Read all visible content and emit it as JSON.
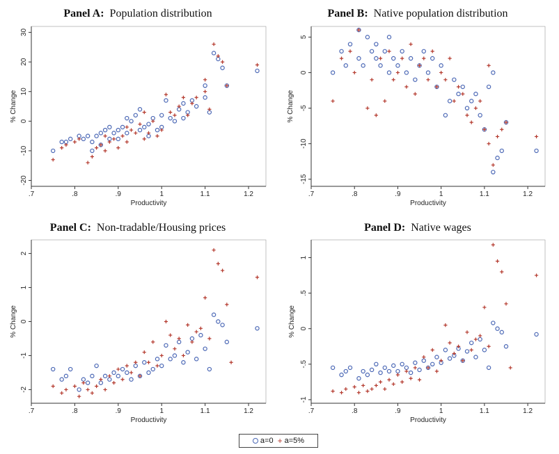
{
  "legend": {
    "series_a": "a=0",
    "series_b": "a=5%",
    "marker_a": "circle",
    "marker_b": "plus"
  },
  "colors": {
    "series_a": "#4a67b5",
    "series_b": "#b3372b",
    "axis": "#333333",
    "frame": "#999999"
  },
  "chart_data": [
    {
      "type": "scatter",
      "title_bold": "Panel A:",
      "title_rest": "Population distribution",
      "xlabel": "Productivity",
      "ylabel": "% Change",
      "xlim": [
        0.7,
        1.24
      ],
      "ylim": [
        -22,
        32
      ],
      "xticks": [
        0.7,
        0.8,
        0.9,
        1.0,
        1.1,
        1.2
      ],
      "xtick_labels": [
        ".7",
        ".8",
        ".9",
        "1",
        "1.1",
        "1.2"
      ],
      "yticks": [
        -20,
        -10,
        0,
        10,
        20,
        30
      ],
      "ytick_labels": [
        "-20",
        "-10",
        "0",
        "10",
        "20",
        "30"
      ],
      "series": [
        {
          "name": "a=0",
          "x": [
            0.75,
            0.77,
            0.78,
            0.79,
            0.81,
            0.82,
            0.83,
            0.84,
            0.84,
            0.85,
            0.86,
            0.86,
            0.87,
            0.88,
            0.88,
            0.89,
            0.9,
            0.9,
            0.91,
            0.92,
            0.92,
            0.93,
            0.94,
            0.95,
            0.95,
            0.96,
            0.97,
            0.97,
            0.98,
            0.99,
            1.0,
            1.0,
            1.01,
            1.02,
            1.03,
            1.04,
            1.05,
            1.05,
            1.06,
            1.07,
            1.08,
            1.1,
            1.1,
            1.11,
            1.12,
            1.13,
            1.14,
            1.15,
            1.22
          ],
          "y": [
            -10,
            -7,
            -7,
            -6,
            -5,
            -6,
            -5,
            -7,
            -10,
            -5,
            -4,
            -8,
            -3,
            -2,
            -6,
            -4,
            -3,
            -6,
            -2,
            -4,
            1,
            0,
            2,
            -3,
            4,
            -2,
            -1,
            -5,
            1,
            -3,
            -2,
            2,
            7,
            1,
            0,
            4,
            6,
            1,
            3,
            7,
            5,
            8,
            12,
            3,
            23,
            21,
            18,
            12,
            17
          ]
        },
        {
          "name": "a=5%",
          "x": [
            0.75,
            0.77,
            0.78,
            0.8,
            0.81,
            0.83,
            0.84,
            0.85,
            0.86,
            0.87,
            0.87,
            0.88,
            0.89,
            0.9,
            0.91,
            0.92,
            0.92,
            0.93,
            0.94,
            0.95,
            0.96,
            0.96,
            0.97,
            0.98,
            0.99,
            1.0,
            1.01,
            1.02,
            1.03,
            1.04,
            1.05,
            1.06,
            1.07,
            1.08,
            1.1,
            1.1,
            1.11,
            1.12,
            1.13,
            1.14,
            1.15,
            1.22
          ],
          "y": [
            -13,
            -9,
            -8,
            -7,
            -6,
            -14,
            -12,
            -9,
            -8,
            -5,
            -10,
            -7,
            -6,
            -9,
            -5,
            -7,
            -2,
            -3,
            -4,
            -1,
            -6,
            3,
            -4,
            0,
            -5,
            -3,
            9,
            3,
            2,
            5,
            8,
            2,
            6,
            8,
            10,
            14,
            4,
            26,
            22,
            20,
            12,
            19
          ]
        }
      ]
    },
    {
      "type": "scatter",
      "title_bold": "Panel B:",
      "title_rest": "Native population distribution",
      "xlabel": "Productivity",
      "ylabel": "% Change",
      "xlim": [
        0.7,
        1.24
      ],
      "ylim": [
        -16,
        6.5
      ],
      "xticks": [
        0.7,
        0.8,
        0.9,
        1.0,
        1.1,
        1.2
      ],
      "xtick_labels": [
        ".7",
        ".8",
        ".9",
        "1",
        "1.1",
        "1.2"
      ],
      "yticks": [
        -15,
        -10,
        -5,
        0,
        5
      ],
      "ytick_labels": [
        "-15",
        "-10",
        "-5",
        "0",
        "5"
      ],
      "series": [
        {
          "name": "a=0",
          "x": [
            0.75,
            0.77,
            0.78,
            0.79,
            0.81,
            0.81,
            0.82,
            0.83,
            0.84,
            0.85,
            0.85,
            0.86,
            0.87,
            0.88,
            0.88,
            0.89,
            0.9,
            0.91,
            0.92,
            0.93,
            0.94,
            0.95,
            0.96,
            0.97,
            0.98,
            0.99,
            1.0,
            1.01,
            1.02,
            1.03,
            1.04,
            1.05,
            1.06,
            1.07,
            1.08,
            1.09,
            1.1,
            1.11,
            1.12,
            1.12,
            1.13,
            1.14,
            1.15,
            1.22
          ],
          "y": [
            0,
            3,
            1,
            4,
            6,
            2,
            1,
            5,
            3,
            2,
            4,
            1,
            3,
            5,
            0,
            2,
            1,
            3,
            0,
            2,
            -1,
            1,
            3,
            0,
            2,
            -2,
            1,
            -6,
            -4,
            -1,
            -3,
            -2,
            -5,
            -4,
            -3,
            -6,
            -8,
            -2,
            -14,
            0,
            -12,
            -11,
            -7,
            -11
          ]
        },
        {
          "name": "a=5%",
          "x": [
            0.75,
            0.77,
            0.79,
            0.8,
            0.81,
            0.83,
            0.84,
            0.85,
            0.86,
            0.87,
            0.88,
            0.89,
            0.9,
            0.91,
            0.92,
            0.93,
            0.94,
            0.95,
            0.96,
            0.97,
            0.98,
            0.99,
            1.0,
            1.01,
            1.02,
            1.03,
            1.04,
            1.05,
            1.06,
            1.07,
            1.08,
            1.09,
            1.1,
            1.11,
            1.11,
            1.12,
            1.13,
            1.14,
            1.15,
            1.22
          ],
          "y": [
            -4,
            2,
            3,
            0,
            6,
            -5,
            -1,
            -6,
            2,
            -4,
            3,
            -1,
            0,
            2,
            -2,
            4,
            -3,
            1,
            2,
            -1,
            3,
            -2,
            0,
            -1,
            2,
            -4,
            -2,
            -3,
            -6,
            -7,
            -5,
            -4,
            -8,
            -10,
            1,
            -13,
            -9,
            -8,
            -7,
            -9
          ]
        }
      ]
    },
    {
      "type": "scatter",
      "title_bold": "Panel C:",
      "title_rest": "Non-tradable/Housing prices",
      "xlabel": "Productivity",
      "ylabel": "% Change",
      "xlim": [
        0.7,
        1.24
      ],
      "ylim": [
        -2.4,
        2.4
      ],
      "xticks": [
        0.7,
        0.8,
        0.9,
        1.0,
        1.1,
        1.2
      ],
      "xtick_labels": [
        ".7",
        ".8",
        ".9",
        "1",
        "1.1",
        "1.2"
      ],
      "yticks": [
        -2,
        -1,
        0,
        1,
        2
      ],
      "ytick_labels": [
        "-2",
        "-1",
        "0",
        "1",
        "2"
      ],
      "series": [
        {
          "name": "a=0",
          "x": [
            0.75,
            0.77,
            0.78,
            0.79,
            0.81,
            0.82,
            0.83,
            0.84,
            0.85,
            0.86,
            0.87,
            0.88,
            0.89,
            0.9,
            0.91,
            0.92,
            0.93,
            0.94,
            0.95,
            0.96,
            0.97,
            0.98,
            0.99,
            1.0,
            1.01,
            1.02,
            1.03,
            1.04,
            1.05,
            1.06,
            1.07,
            1.08,
            1.09,
            1.1,
            1.11,
            1.12,
            1.13,
            1.14,
            1.15,
            1.22
          ],
          "y": [
            -1.4,
            -1.7,
            -1.6,
            -1.4,
            -2.0,
            -1.7,
            -1.8,
            -1.6,
            -1.3,
            -1.8,
            -1.6,
            -1.7,
            -1.5,
            -1.6,
            -1.4,
            -1.5,
            -1.7,
            -1.3,
            -1.6,
            -1.2,
            -1.5,
            -1.4,
            -1.1,
            -1.3,
            -0.7,
            -1.1,
            -1.0,
            -0.6,
            -1.2,
            -0.9,
            -0.5,
            -1.1,
            -0.4,
            -0.8,
            -1.4,
            0.2,
            0.0,
            -0.1,
            -0.6,
            -0.2
          ]
        },
        {
          "name": "a=5%",
          "x": [
            0.75,
            0.77,
            0.78,
            0.8,
            0.81,
            0.82,
            0.83,
            0.84,
            0.85,
            0.86,
            0.87,
            0.88,
            0.89,
            0.9,
            0.91,
            0.92,
            0.93,
            0.94,
            0.95,
            0.96,
            0.97,
            0.98,
            0.99,
            1.0,
            1.01,
            1.02,
            1.03,
            1.04,
            1.05,
            1.06,
            1.07,
            1.08,
            1.09,
            1.1,
            1.11,
            1.12,
            1.13,
            1.14,
            1.15,
            1.16,
            1.22
          ],
          "y": [
            -1.9,
            -2.1,
            -2.0,
            -1.9,
            -2.2,
            -1.8,
            -2.0,
            -2.1,
            -1.9,
            -1.7,
            -2.0,
            -1.6,
            -1.8,
            -1.4,
            -1.7,
            -1.3,
            -1.5,
            -1.2,
            -1.6,
            -0.9,
            -1.2,
            -0.6,
            -1.3,
            -1.0,
            0.0,
            -0.4,
            -0.8,
            -0.5,
            -1.0,
            -0.1,
            -0.6,
            -0.3,
            -0.2,
            0.7,
            -0.5,
            2.1,
            1.7,
            1.5,
            0.5,
            -1.2,
            1.3
          ]
        }
      ]
    },
    {
      "type": "scatter",
      "title_bold": "Panel D:",
      "title_rest": "Native wages",
      "xlabel": "Productivity",
      "ylabel": "% Change",
      "xlim": [
        0.7,
        1.24
      ],
      "ylim": [
        -1.05,
        1.25
      ],
      "xticks": [
        0.7,
        0.8,
        0.9,
        1.0,
        1.1,
        1.2
      ],
      "xtick_labels": [
        ".7",
        ".8",
        ".9",
        "1",
        "1.1",
        "1.2"
      ],
      "yticks": [
        -1,
        -0.5,
        0,
        0.5,
        1
      ],
      "ytick_labels": [
        "-1",
        "-.5",
        "0",
        ".5",
        "1"
      ],
      "series": [
        {
          "name": "a=0",
          "x": [
            0.75,
            0.77,
            0.78,
            0.79,
            0.81,
            0.82,
            0.83,
            0.84,
            0.85,
            0.86,
            0.87,
            0.88,
            0.89,
            0.9,
            0.91,
            0.92,
            0.93,
            0.94,
            0.95,
            0.96,
            0.97,
            0.98,
            0.99,
            1.0,
            1.01,
            1.02,
            1.03,
            1.04,
            1.05,
            1.06,
            1.07,
            1.08,
            1.09,
            1.1,
            1.11,
            1.12,
            1.13,
            1.14,
            1.15,
            1.22
          ],
          "y": [
            -0.55,
            -0.65,
            -0.6,
            -0.55,
            -0.7,
            -0.6,
            -0.65,
            -0.58,
            -0.5,
            -0.62,
            -0.55,
            -0.6,
            -0.52,
            -0.6,
            -0.5,
            -0.55,
            -0.62,
            -0.48,
            -0.58,
            -0.45,
            -0.55,
            -0.5,
            -0.4,
            -0.48,
            -0.3,
            -0.42,
            -0.38,
            -0.28,
            -0.45,
            -0.32,
            -0.2,
            -0.4,
            -0.15,
            -0.3,
            -0.55,
            0.08,
            0.0,
            -0.05,
            -0.25,
            -0.08
          ]
        },
        {
          "name": "a=5%",
          "x": [
            0.75,
            0.77,
            0.78,
            0.8,
            0.81,
            0.82,
            0.83,
            0.84,
            0.85,
            0.86,
            0.87,
            0.88,
            0.89,
            0.9,
            0.91,
            0.92,
            0.93,
            0.94,
            0.95,
            0.96,
            0.97,
            0.98,
            0.99,
            1.0,
            1.01,
            1.02,
            1.03,
            1.04,
            1.05,
            1.06,
            1.07,
            1.08,
            1.09,
            1.1,
            1.11,
            1.12,
            1.13,
            1.14,
            1.15,
            1.16,
            1.22
          ],
          "y": [
            -0.88,
            -0.9,
            -0.85,
            -0.82,
            -0.9,
            -0.8,
            -0.88,
            -0.85,
            -0.8,
            -0.75,
            -0.85,
            -0.72,
            -0.78,
            -0.65,
            -0.75,
            -0.6,
            -0.7,
            -0.55,
            -0.72,
            -0.4,
            -0.55,
            -0.3,
            -0.6,
            -0.45,
            0.05,
            -0.2,
            -0.35,
            -0.25,
            -0.45,
            -0.05,
            -0.3,
            -0.15,
            -0.1,
            0.3,
            -0.25,
            1.18,
            0.95,
            0.8,
            0.35,
            -0.55,
            0.75
          ]
        }
      ]
    }
  ]
}
